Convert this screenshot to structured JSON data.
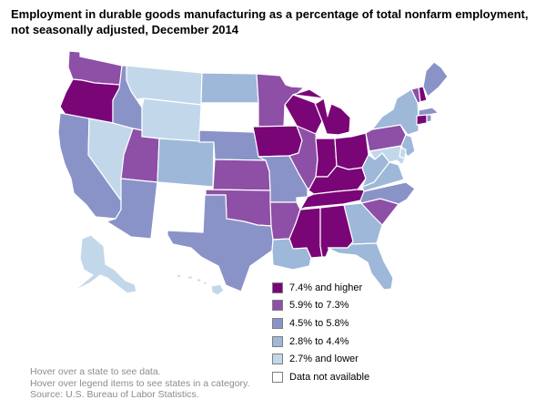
{
  "title_line1": "Employment in durable goods manufacturing as a percentage of total nonfarm employment,",
  "title_line2": "not seasonally adjusted, December 2014",
  "colors": {
    "cat1": "#7a0577",
    "cat2": "#8e4fa6",
    "cat3": "#8a93c8",
    "cat4": "#9db8d8",
    "cat5": "#c3d7eb",
    "cat6": "#ffffff",
    "border": "#ffffff"
  },
  "legend": [
    {
      "label": "7.4% and higher",
      "category": "cat1"
    },
    {
      "label": "5.9% to 7.3%",
      "category": "cat2"
    },
    {
      "label": "4.5% to 5.8%",
      "category": "cat3"
    },
    {
      "label": "2.8% to 4.4%",
      "category": "cat4"
    },
    {
      "label": "2.7% and lower",
      "category": "cat5"
    },
    {
      "label": "Data not available",
      "category": "cat6"
    }
  ],
  "state_categories": {
    "WA": "cat2",
    "OR": "cat1",
    "CA": "cat3",
    "NV": "cat5",
    "ID": "cat3",
    "MT": "cat5",
    "WY": "cat5",
    "UT": "cat2",
    "AZ": "cat3",
    "CO": "cat4",
    "NM": "cat6",
    "ND": "cat4",
    "SD": "cat6",
    "NE": "cat3",
    "KS": "cat2",
    "OK": "cat2",
    "TX": "cat3",
    "MN": "cat2",
    "IA": "cat1",
    "MO": "cat3",
    "AR": "cat2",
    "LA": "cat4",
    "WI": "cat1",
    "IL": "cat2",
    "MI": "cat1",
    "IN": "cat1",
    "OH": "cat1",
    "KY": "cat1",
    "TN": "cat1",
    "MS": "cat1",
    "AL": "cat1",
    "GA": "cat4",
    "FL": "cat4",
    "SC": "cat2",
    "NC": "cat3",
    "VA": "cat4",
    "WV": "cat4",
    "PA": "cat2",
    "NY": "cat4",
    "VT": "cat2",
    "NH": "cat1",
    "ME": "cat3",
    "MA": "cat3",
    "CT": "cat1",
    "RI": "cat3",
    "NJ": "cat4",
    "DE": "cat5",
    "MD": "cat5",
    "AK": "cat5",
    "HI": "cat5"
  },
  "notes": [
    "Hover over a state to see data.",
    "Hover over legend items to see states in a category.",
    "Source: U.S. Bureau of Labor Statistics."
  ]
}
